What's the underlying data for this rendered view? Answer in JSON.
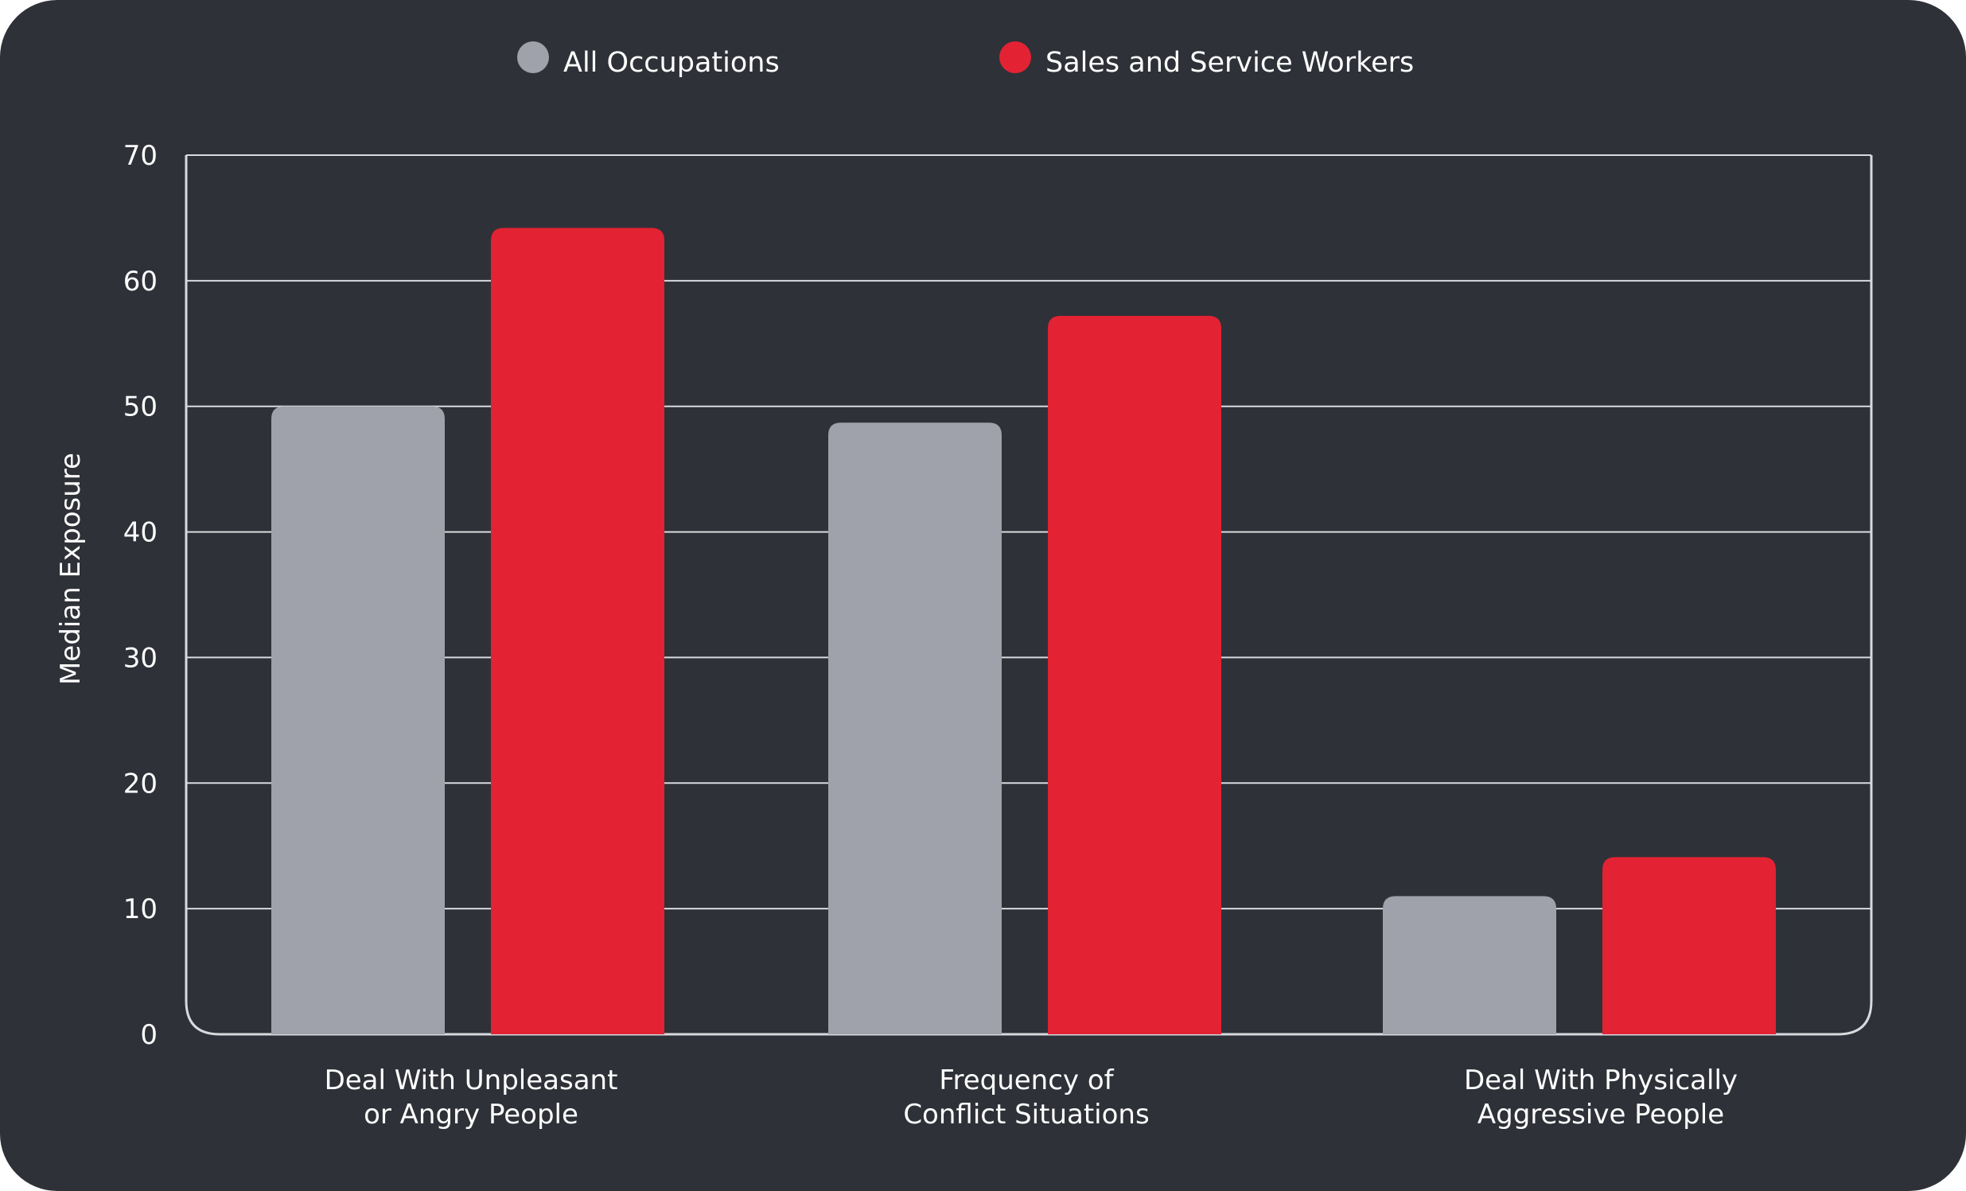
{
  "chart_data": {
    "type": "bar",
    "ylabel": "Median Exposure",
    "xlabel": "",
    "ylim": [
      0,
      70
    ],
    "yticks": [
      0,
      10,
      20,
      30,
      40,
      50,
      60,
      70
    ],
    "grid": true,
    "legend_position": "top-center",
    "categories": [
      [
        "Deal With Unpleasant",
        "or Angry People"
      ],
      [
        "Frequency of",
        "Conflict Situations"
      ],
      [
        "Deal With Physically",
        "Aggressive People"
      ]
    ],
    "series": [
      {
        "name": "All Occupations",
        "color": "#9fa1ab",
        "values": [
          50,
          48.7,
          11
        ]
      },
      {
        "name": "Sales and Service Workers",
        "color": "#e32233",
        "values": [
          64.2,
          57.2,
          14.1
        ]
      }
    ]
  },
  "colors": {
    "background": "#2f3138",
    "grid": "#d9dade",
    "text": "#ffffff"
  }
}
